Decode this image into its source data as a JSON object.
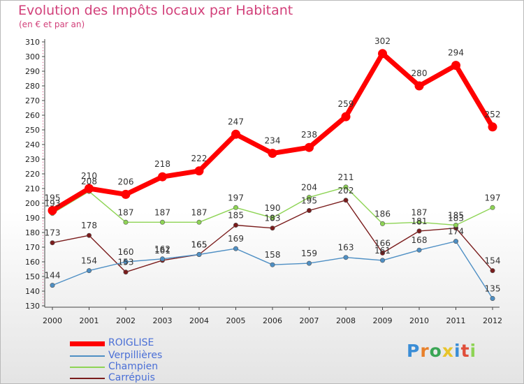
{
  "chart_data": {
    "type": "line",
    "title": "Evolution des Impôts locaux par Habitant",
    "subtitle": "(en € et par an)",
    "xlabel": "",
    "ylabel": "",
    "ylim": [
      130,
      310
    ],
    "yticks": [
      130,
      140,
      150,
      160,
      170,
      180,
      190,
      200,
      210,
      220,
      230,
      240,
      250,
      260,
      270,
      280,
      290,
      300,
      310
    ],
    "categories": [
      "2000",
      "2001",
      "2002",
      "2003",
      "2004",
      "2005",
      "2006",
      "2007",
      "2008",
      "2009",
      "2010",
      "2011",
      "2012"
    ],
    "grid": false,
    "legend_position": "bottom-left",
    "series": [
      {
        "name": "ROIGLISE",
        "color": "#ff0000",
        "values": [
          195,
          210,
          206,
          218,
          222,
          247,
          234,
          238,
          259,
          302,
          280,
          294,
          252
        ]
      },
      {
        "name": "Verpillières",
        "color": "#4e8fc4",
        "values": [
          144,
          154,
          160,
          162,
          165,
          169,
          158,
          159,
          163,
          161,
          168,
          174,
          135
        ]
      },
      {
        "name": "Champien",
        "color": "#8ed455",
        "values": [
          193,
          208,
          187,
          187,
          187,
          197,
          190,
          204,
          211,
          186,
          187,
          185,
          197
        ]
      },
      {
        "name": "Carrépuis",
        "color": "#7a1c1c",
        "values": [
          173,
          178,
          153,
          161,
          165,
          185,
          183,
          195,
          202,
          166,
          181,
          183,
          154
        ]
      }
    ]
  },
  "logo": {
    "text": "Proxiti"
  }
}
